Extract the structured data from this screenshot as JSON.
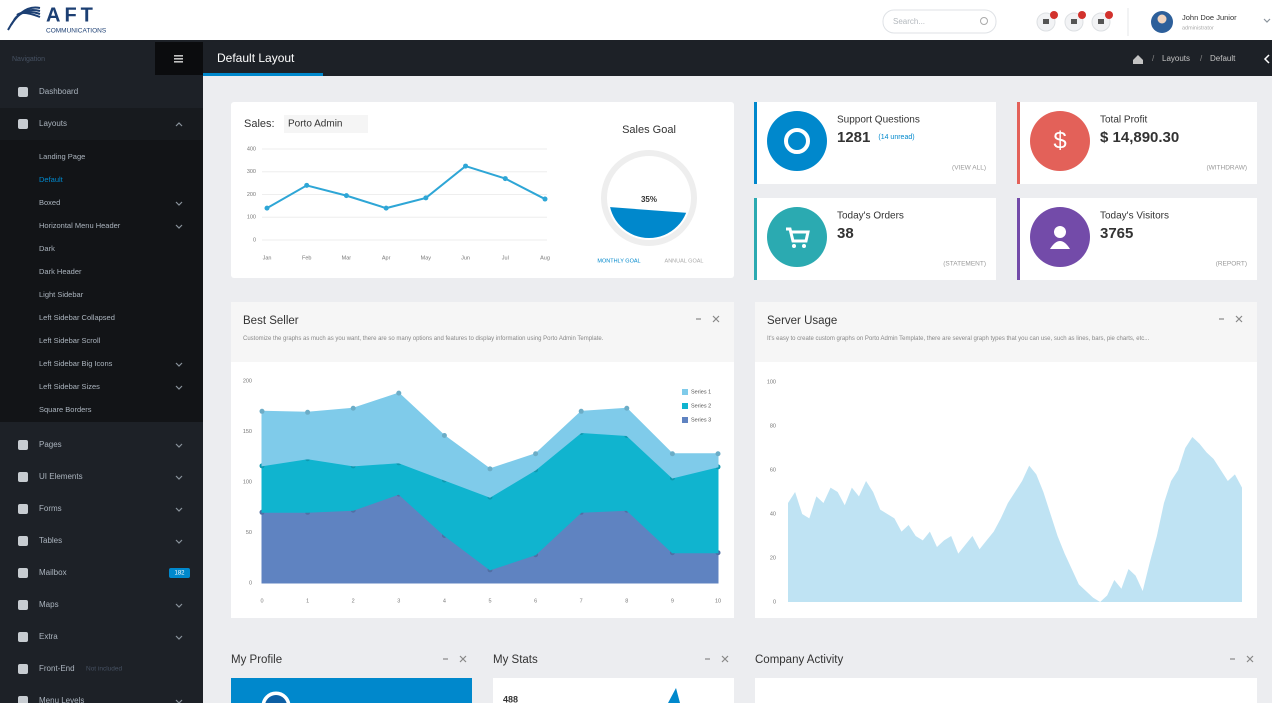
{
  "header": {
    "logo": "AFT",
    "logo_sub": "COMMUNICATIONS",
    "search_placeholder": "Search...",
    "user_name": "John Doe Junior",
    "user_role": "administrator"
  },
  "sidebar": {
    "title": "Navigation",
    "items": [
      {
        "label": "Dashboard"
      },
      {
        "label": "Layouts",
        "has_submenu": true,
        "children": [
          {
            "label": "Landing Page"
          },
          {
            "label": "Default",
            "active": true
          },
          {
            "label": "Boxed",
            "has_submenu": true
          },
          {
            "label": "Horizontal Menu Header",
            "has_submenu": true
          },
          {
            "label": "Dark"
          },
          {
            "label": "Dark Header"
          },
          {
            "label": "Light Sidebar"
          },
          {
            "label": "Left Sidebar Collapsed"
          },
          {
            "label": "Left Sidebar Scroll"
          },
          {
            "label": "Left Sidebar Big Icons",
            "has_submenu": true
          },
          {
            "label": "Left Sidebar Sizes",
            "has_submenu": true
          },
          {
            "label": "Square Borders"
          }
        ]
      },
      {
        "label": "Pages",
        "has_submenu": true
      },
      {
        "label": "UI Elements",
        "has_submenu": true
      },
      {
        "label": "Forms",
        "has_submenu": true
      },
      {
        "label": "Tables",
        "has_submenu": true
      },
      {
        "label": "Mailbox",
        "badge": "182"
      },
      {
        "label": "Maps",
        "has_submenu": true
      },
      {
        "label": "Extra",
        "has_submenu": true
      },
      {
        "label": "Front-End",
        "note": "Not included"
      },
      {
        "label": "Menu Levels",
        "has_submenu": true
      }
    ]
  },
  "page": {
    "title": "Default Layout",
    "breadcrumb": [
      "Layouts",
      "Default"
    ]
  },
  "sales": {
    "label": "Sales:",
    "selector": "Porto Admin",
    "chart": {
      "type": "line",
      "categories": [
        "Jan",
        "Feb",
        "Mar",
        "Apr",
        "May",
        "Jun",
        "Jul",
        "Aug"
      ],
      "values": [
        140,
        240,
        195,
        140,
        185,
        325,
        270,
        180
      ],
      "color": "#2ea6d6",
      "ylim": [
        0,
        400
      ],
      "yticks": [
        0,
        100,
        200,
        300,
        400
      ],
      "grid": true
    },
    "goal": {
      "title": "Sales Goal",
      "value": 35,
      "value_label": "35%",
      "color": "#0088cc",
      "tabs": [
        "MONTHLY GOAL",
        "ANNUAL GOAL"
      ]
    }
  },
  "stats": [
    {
      "title": "Support Questions",
      "value": "1281",
      "note": "(14 unread)",
      "link": "(VIEW ALL)",
      "color": "#0088cc"
    },
    {
      "title": "Total Profit",
      "value": "$ 14,890.30",
      "link": "(WITHDRAW)",
      "color": "#e36159",
      "icon": "$"
    },
    {
      "title": "Today's Orders",
      "value": "38",
      "link": "(STATEMENT)",
      "color": "#2baab1"
    },
    {
      "title": "Today's Visitors",
      "value": "3765",
      "link": "(REPORT)",
      "color": "#734ba9"
    }
  ],
  "best_seller": {
    "title": "Best Seller",
    "description": "Customize the graphs as much as you want, there are so many options and features to display information using Porto Admin Template.",
    "chart": {
      "type": "area",
      "stacked": true,
      "legend": "top-right",
      "x": [
        0,
        1,
        2,
        3,
        4,
        5,
        6,
        7,
        8,
        9,
        10
      ],
      "xlim": [
        0,
        10
      ],
      "xticks": [
        0,
        1,
        2,
        3,
        4,
        5,
        6,
        7,
        8,
        9,
        10
      ],
      "ylim": [
        0,
        200
      ],
      "yticks": [
        0,
        50,
        100,
        150,
        200
      ],
      "series": [
        {
          "name": "Series 3",
          "color": "#5f83c1",
          "values": [
            70,
            70,
            72,
            88,
            47,
            13,
            28,
            70,
            72,
            30,
            30
          ]
        },
        {
          "name": "Series 2",
          "color": "#10b4cf",
          "values": [
            46,
            53,
            44,
            31,
            55,
            72,
            84,
            79,
            74,
            74,
            85
          ]
        },
        {
          "name": "Series 1",
          "color": "#7fcbea",
          "values": [
            54,
            46,
            57,
            69,
            44,
            28,
            16,
            21,
            27,
            24,
            13
          ]
        }
      ]
    }
  },
  "server_usage": {
    "title": "Server Usage",
    "description": "It's easy to create custom graphs on Porto Admin Template, there are several graph types that you can use, such as lines, bars, pie charts, etc...",
    "chart": {
      "type": "area",
      "color": "#bfe3f3",
      "ylim": [
        0,
        100
      ],
      "yticks": [
        0,
        20,
        40,
        60,
        80,
        100
      ],
      "values": [
        45,
        50,
        40,
        38,
        48,
        45,
        52,
        50,
        44,
        52,
        48,
        55,
        50,
        42,
        40,
        38,
        32,
        35,
        30,
        28,
        32,
        25,
        28,
        30,
        22,
        26,
        30,
        24,
        28,
        32,
        38,
        45,
        50,
        55,
        62,
        58,
        50,
        40,
        30,
        22,
        15,
        8,
        5,
        2,
        0,
        3,
        10,
        6,
        15,
        12,
        5,
        18,
        30,
        45,
        55,
        60,
        70,
        75,
        72,
        68,
        65,
        60,
        55,
        58,
        52
      ]
    }
  },
  "bottom": {
    "panels": [
      "My Profile",
      "My Stats",
      "Company Activity"
    ],
    "stat": "488"
  }
}
